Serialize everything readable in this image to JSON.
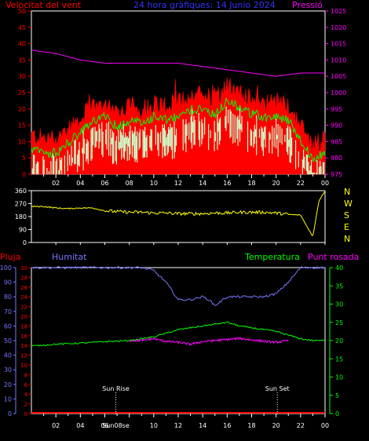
{
  "colors": {
    "wind_avg": "#FF0000",
    "wind_gust_fill": "#FF0000",
    "wind_gust_line": "#00FF00",
    "wind_lull": "#CCFFCC",
    "pressure": "#FF00FF",
    "direction": "#FFFF00",
    "humidity": "#7777FF",
    "temperature": "#00FF00",
    "dewpoint": "#FF00FF",
    "rain": "#FF0000",
    "text_white": "#FFFFFF"
  },
  "chart_data": [
    {
      "type": "area",
      "title": "24 hora gràfiques:  14 Junio 2024",
      "ylabel_left": "Velocitat del vent",
      "ylabel_right": "Pressió",
      "ylim_left": [
        0,
        50
      ],
      "ylim_right": [
        975,
        1025
      ],
      "yticks_left": [
        "0",
        "5",
        "10",
        "15",
        "20",
        "25",
        "30",
        "35",
        "40",
        "45",
        "50"
      ],
      "yticks_right": [
        "975",
        "980",
        "985",
        "990",
        "995",
        "1000",
        "1005",
        "1010",
        "1015",
        "1020",
        "1025"
      ],
      "x_ticks": [
        "02",
        "04",
        "06",
        "08",
        "10",
        "12",
        "14",
        "16",
        "18",
        "20",
        "22",
        "00"
      ],
      "series": [
        {
          "name": "Velocitat del vent",
          "hours": [
            0,
            1,
            2,
            3,
            4,
            5,
            6,
            7,
            8,
            9,
            10,
            11,
            12,
            13,
            14,
            15,
            16,
            17,
            18,
            19,
            20,
            21,
            22,
            23,
            24
          ],
          "values": [
            7,
            6,
            6,
            9,
            12,
            16,
            17,
            14,
            16,
            15,
            17,
            16,
            17,
            19,
            20,
            18,
            22,
            20,
            18,
            17,
            17,
            16,
            10,
            4,
            6
          ]
        },
        {
          "name": "Pressió",
          "hours": [
            0,
            2,
            4,
            6,
            8,
            10,
            12,
            14,
            16,
            18,
            20,
            22,
            24
          ],
          "values": [
            1013,
            1012,
            1010,
            1009,
            1009,
            1009,
            1009,
            1008,
            1007,
            1006,
            1005,
            1006,
            1006
          ]
        }
      ]
    },
    {
      "type": "line",
      "ylim": [
        0,
        360
      ],
      "yticks": [
        "0",
        "90",
        "180",
        "270",
        "360"
      ],
      "compass_labels": [
        "N",
        "W",
        "S",
        "E",
        "N"
      ],
      "series": [
        {
          "name": "direction",
          "hours": [
            0,
            1,
            2,
            3,
            4,
            5,
            6,
            7,
            8,
            9,
            10,
            11,
            12,
            13,
            14,
            15,
            16,
            17,
            18,
            19,
            20,
            21,
            22,
            23,
            23.5,
            24
          ],
          "values": [
            250,
            250,
            240,
            235,
            240,
            240,
            220,
            215,
            210,
            210,
            205,
            205,
            200,
            200,
            200,
            205,
            205,
            210,
            210,
            210,
            205,
            195,
            190,
            40,
            290,
            360
          ]
        }
      ]
    },
    {
      "type": "line",
      "labels": {
        "rain": "Pluja",
        "humidity": "Humitat",
        "temperature": "Temperatura",
        "dewpoint": "Punt rosada"
      },
      "ylim_rain": [
        0,
        30
      ],
      "ylim_humidity": [
        0,
        100
      ],
      "ylim_temp": [
        0,
        40
      ],
      "yticks_rain": [
        "0",
        "2",
        "4",
        "6",
        "8",
        "10",
        "12",
        "14",
        "16",
        "18",
        "20",
        "22",
        "24",
        "26",
        "28",
        "30"
      ],
      "yticks_humidity": [
        "0",
        "10",
        "20",
        "30",
        "40",
        "50",
        "60",
        "70",
        "80",
        "90",
        "100"
      ],
      "yticks_temp": [
        "0",
        "5",
        "10",
        "15",
        "20",
        "25",
        "30",
        "35",
        "40"
      ],
      "x_ticks": [
        "02",
        "04",
        "06",
        "08",
        "10",
        "12",
        "14",
        "16",
        "18",
        "20",
        "22",
        "00"
      ],
      "sunrise_label": "Sun Rise",
      "sunset_label": "Sun Set",
      "sunrise_hour": 6.9,
      "sunset_hour": 20.1,
      "x_marker_label": "Sun08se",
      "series": [
        {
          "name": "Humitat",
          "hours": [
            0,
            2,
            4,
            6,
            8,
            9,
            10,
            11,
            12,
            13,
            14,
            14.5,
            15,
            16,
            17,
            18,
            19,
            20,
            21,
            22,
            23,
            24
          ],
          "values": [
            100,
            100,
            100,
            100,
            100,
            100,
            98,
            90,
            78,
            78,
            80,
            78,
            74,
            80,
            80,
            80,
            80,
            82,
            90,
            100,
            100,
            100
          ]
        },
        {
          "name": "Temperatura",
          "hours": [
            0,
            2,
            4,
            6,
            8,
            9,
            10,
            11,
            12,
            13,
            14,
            15,
            16,
            17,
            18,
            19,
            20,
            21,
            22,
            23,
            24
          ],
          "values": [
            18.5,
            19,
            19.3,
            19.7,
            20,
            20.5,
            21,
            22,
            23,
            23.5,
            24,
            24.5,
            25,
            24,
            23.5,
            23,
            22.5,
            21.5,
            20.5,
            20,
            20
          ]
        },
        {
          "name": "Punt rosada",
          "hours": [
            8,
            9,
            10,
            11,
            12,
            13,
            14,
            15,
            16,
            17,
            18,
            19,
            20,
            21
          ],
          "values": [
            20,
            20,
            20.5,
            19.8,
            19.5,
            19,
            19.7,
            20,
            20.3,
            20.6,
            20.2,
            19.8,
            19.5,
            20
          ]
        },
        {
          "name": "Pluja",
          "hours": [
            0,
            24
          ],
          "values": [
            0,
            0
          ]
        }
      ]
    }
  ]
}
